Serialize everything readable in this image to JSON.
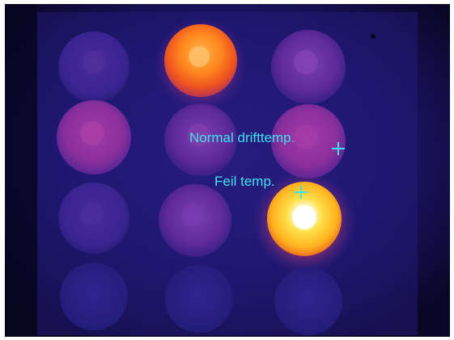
{
  "annotations": {
    "normal_label": "Normal drifttemp.",
    "fault_label": "Feil temp."
  },
  "colors": {
    "annotation": "#3fe0f0",
    "background": "#0c0828",
    "panel": "#1d1a66",
    "cool_cap": "#6a2fa0",
    "warm_cap": "#ff7d1e",
    "hot_cap": "#ffd23a",
    "hot_core": "#ffffff"
  },
  "image": {
    "subject": "thermal camera image of a 3x4 grid of round fuse caps"
  }
}
